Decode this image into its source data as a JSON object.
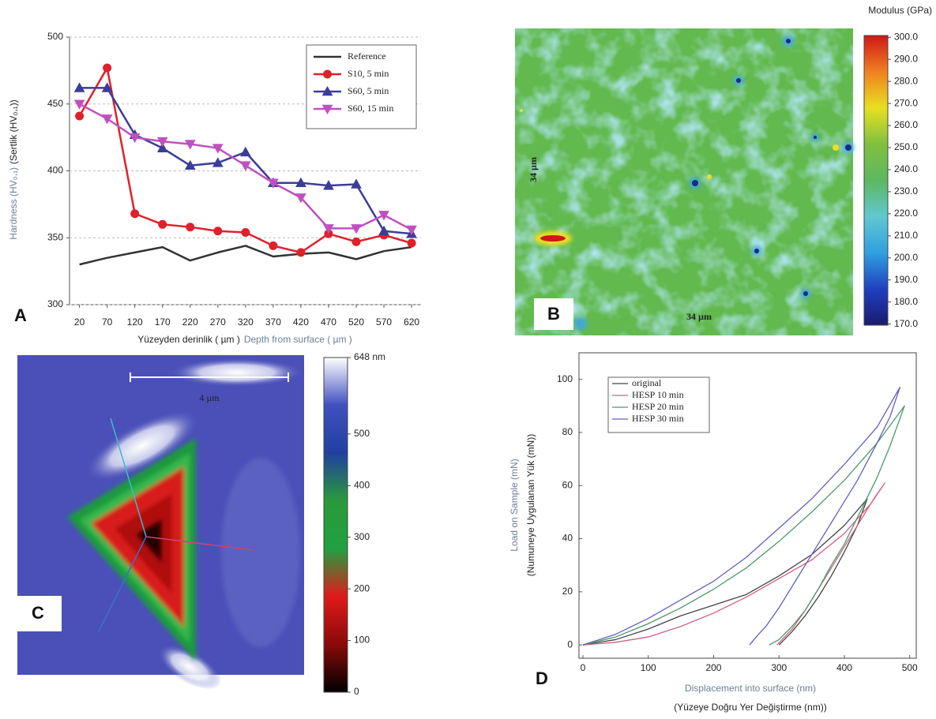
{
  "chart_data": [
    {
      "type": "line",
      "panel": "A",
      "x_label": "Yüzeyden derinlik ( µm )",
      "x_label_en": "Depth from surface ( µm )",
      "y_label_en": "Hardness (HV₀,₁)",
      "y_label": "(Sertlik (HV₀,₁))",
      "x": [
        20,
        70,
        120,
        170,
        220,
        270,
        320,
        370,
        420,
        470,
        520,
        570,
        620
      ],
      "series": [
        {
          "name": "Reference",
          "color": "#333333",
          "values": [
            330,
            335,
            339,
            343,
            333,
            339,
            344,
            336,
            338,
            339,
            334,
            340,
            343
          ]
        },
        {
          "name": "S10, 5 min",
          "color": "#e0202a",
          "marker": "circle",
          "values": [
            441,
            477,
            368,
            360,
            358,
            355,
            354,
            344,
            339,
            353,
            347,
            352,
            346
          ]
        },
        {
          "name": "S60, 5 min",
          "color": "#3c3c99",
          "marker": "triangle-up",
          "values": [
            462,
            462,
            427,
            417,
            404,
            406,
            414,
            391,
            391,
            389,
            390,
            355,
            353
          ]
        },
        {
          "name": "S60, 15 min",
          "color": "#c050c0",
          "marker": "triangle-down",
          "values": [
            450,
            439,
            425,
            422,
            420,
            417,
            404,
            391,
            380,
            357,
            357,
            367,
            356
          ]
        }
      ],
      "xlim": [
        2,
        637
      ],
      "xticks": [
        20,
        70,
        120,
        170,
        220,
        270,
        320,
        370,
        420,
        470,
        520,
        570,
        620
      ],
      "ylim": [
        300,
        500
      ],
      "yticks": [
        300,
        350,
        400,
        450,
        500
      ],
      "grid": true,
      "legend": "upper right"
    },
    {
      "type": "colormap",
      "panel": "B",
      "title": "Modulus (GPa)",
      "clim": [
        169.5,
        300.8
      ],
      "colors": [
        "#1a1a6e",
        "#2040c0",
        "#30a0e0",
        "#60c8d0",
        "#5cb860",
        "#80c040",
        "#e8e020",
        "#f08020",
        "#d01818"
      ],
      "cticks": [
        {
          "value": 170,
          "label": "170.0"
        },
        {
          "value": 180,
          "label": "180.0"
        },
        {
          "value": 190,
          "label": "190.0"
        },
        {
          "value": 200,
          "label": "200.0"
        },
        {
          "value": 210,
          "label": "210.0"
        },
        {
          "value": 220,
          "label": "220.0"
        },
        {
          "value": 230,
          "label": "230.0"
        },
        {
          "value": 240,
          "label": "240.0"
        },
        {
          "value": 250,
          "label": "250.0"
        },
        {
          "value": 260,
          "label": "260.0"
        },
        {
          "value": 270,
          "label": "270.0"
        },
        {
          "value": 280,
          "label": "280.0"
        },
        {
          "value": 290,
          "label": "290.0"
        },
        {
          "value": 300,
          "label": "300.0"
        }
      ],
      "annotations": [
        "34 µm",
        "34 µm"
      ]
    },
    {
      "type": "colormap",
      "panel": "C",
      "clim": [
        0,
        648
      ],
      "colors": [
        "#000000",
        "#8a0a0a",
        "#e01a1a",
        "#20a040",
        "#2a9a3a",
        "#2040a0",
        "#4050c0",
        "#ffffff"
      ],
      "cticks": [
        0,
        100,
        200,
        300,
        400,
        500,
        {
          "value": 648,
          "label": "648 nm"
        }
      ],
      "annotations": [
        "4 µm"
      ]
    },
    {
      "type": "line",
      "panel": "D",
      "x_label_en": "Displacement into surface (nm)",
      "x_label": "(Yüzeye Doğru Yer Değiştirme (nm))",
      "y_label_en": "Load on Sample (mN)",
      "y_label": "(Numuneye Uygulanan Yük (mN))",
      "series": [
        {
          "name": "original",
          "color": "#444444",
          "x": [
            0,
            50,
            100,
            150,
            200,
            250,
            300,
            350,
            400,
            435,
            420,
            400,
            380,
            360,
            340,
            320,
            300
          ],
          "values": [
            0,
            2,
            6,
            11,
            15,
            19,
            26,
            34,
            45,
            55,
            45,
            35,
            26,
            18,
            11,
            5,
            0
          ]
        },
        {
          "name": "HESP 10 min",
          "color": "#d06080",
          "x": [
            0,
            50,
            100,
            150,
            200,
            250,
            300,
            350,
            400,
            440,
            462,
            445,
            420,
            400,
            380,
            360,
            340,
            320,
            297
          ],
          "values": [
            0,
            1,
            3,
            7,
            12,
            18,
            25,
            32,
            42,
            53,
            61,
            55,
            45,
            37,
            29,
            21,
            13,
            6,
            0
          ]
        },
        {
          "name": "HESP 20 min",
          "color": "#4a9a6a",
          "x": [
            0,
            50,
            100,
            150,
            200,
            250,
            300,
            350,
            400,
            450,
            492,
            470,
            450,
            420,
            400,
            380,
            360,
            340,
            320,
            300,
            285
          ],
          "values": [
            0,
            3,
            8,
            14,
            21,
            29,
            39,
            50,
            62,
            76,
            90,
            75,
            63,
            48,
            38,
            30,
            21,
            13,
            7,
            2,
            0
          ]
        },
        {
          "name": "HESP 30 min",
          "color": "#6060c0",
          "x": [
            0,
            50,
            100,
            150,
            200,
            250,
            300,
            350,
            400,
            450,
            485,
            470,
            450,
            420,
            400,
            380,
            360,
            340,
            320,
            300,
            280,
            265,
            255
          ],
          "values": [
            0,
            4,
            10,
            17,
            24,
            33,
            44,
            55,
            68,
            82,
            97,
            86,
            76,
            62,
            54,
            46,
            38,
            30,
            22,
            14,
            7,
            3,
            0
          ]
        }
      ],
      "xlim": [
        -6,
        510
      ],
      "xticks": [
        0,
        100,
        200,
        300,
        400,
        500
      ],
      "ylim": [
        -5,
        110
      ],
      "yticks": [
        0,
        20,
        40,
        60,
        80,
        100
      ],
      "grid": false,
      "legend": "upper left"
    }
  ]
}
